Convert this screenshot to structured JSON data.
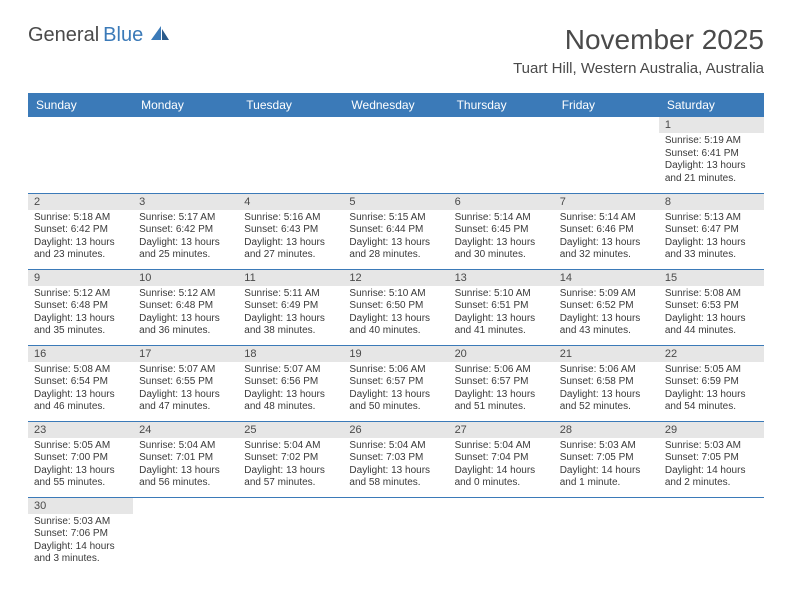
{
  "logo": {
    "part1": "General",
    "part2": "Blue"
  },
  "title": "November 2025",
  "location": "Tuart Hill, Western Australia, Australia",
  "colors": {
    "header_bg": "#3b7ab8",
    "header_text": "#ffffff",
    "daynum_bg": "#e6e6e6",
    "text": "#3a3a3a",
    "title_text": "#4a4a4a",
    "row_border": "#3b7ab8"
  },
  "day_headers": [
    "Sunday",
    "Monday",
    "Tuesday",
    "Wednesday",
    "Thursday",
    "Friday",
    "Saturday"
  ],
  "weeks": [
    [
      null,
      null,
      null,
      null,
      null,
      null,
      {
        "n": "1",
        "sr": "Sunrise: 5:19 AM",
        "ss": "Sunset: 6:41 PM",
        "dl": "Daylight: 13 hours and 21 minutes."
      }
    ],
    [
      {
        "n": "2",
        "sr": "Sunrise: 5:18 AM",
        "ss": "Sunset: 6:42 PM",
        "dl": "Daylight: 13 hours and 23 minutes."
      },
      {
        "n": "3",
        "sr": "Sunrise: 5:17 AM",
        "ss": "Sunset: 6:42 PM",
        "dl": "Daylight: 13 hours and 25 minutes."
      },
      {
        "n": "4",
        "sr": "Sunrise: 5:16 AM",
        "ss": "Sunset: 6:43 PM",
        "dl": "Daylight: 13 hours and 27 minutes."
      },
      {
        "n": "5",
        "sr": "Sunrise: 5:15 AM",
        "ss": "Sunset: 6:44 PM",
        "dl": "Daylight: 13 hours and 28 minutes."
      },
      {
        "n": "6",
        "sr": "Sunrise: 5:14 AM",
        "ss": "Sunset: 6:45 PM",
        "dl": "Daylight: 13 hours and 30 minutes."
      },
      {
        "n": "7",
        "sr": "Sunrise: 5:14 AM",
        "ss": "Sunset: 6:46 PM",
        "dl": "Daylight: 13 hours and 32 minutes."
      },
      {
        "n": "8",
        "sr": "Sunrise: 5:13 AM",
        "ss": "Sunset: 6:47 PM",
        "dl": "Daylight: 13 hours and 33 minutes."
      }
    ],
    [
      {
        "n": "9",
        "sr": "Sunrise: 5:12 AM",
        "ss": "Sunset: 6:48 PM",
        "dl": "Daylight: 13 hours and 35 minutes."
      },
      {
        "n": "10",
        "sr": "Sunrise: 5:12 AM",
        "ss": "Sunset: 6:48 PM",
        "dl": "Daylight: 13 hours and 36 minutes."
      },
      {
        "n": "11",
        "sr": "Sunrise: 5:11 AM",
        "ss": "Sunset: 6:49 PM",
        "dl": "Daylight: 13 hours and 38 minutes."
      },
      {
        "n": "12",
        "sr": "Sunrise: 5:10 AM",
        "ss": "Sunset: 6:50 PM",
        "dl": "Daylight: 13 hours and 40 minutes."
      },
      {
        "n": "13",
        "sr": "Sunrise: 5:10 AM",
        "ss": "Sunset: 6:51 PM",
        "dl": "Daylight: 13 hours and 41 minutes."
      },
      {
        "n": "14",
        "sr": "Sunrise: 5:09 AM",
        "ss": "Sunset: 6:52 PM",
        "dl": "Daylight: 13 hours and 43 minutes."
      },
      {
        "n": "15",
        "sr": "Sunrise: 5:08 AM",
        "ss": "Sunset: 6:53 PM",
        "dl": "Daylight: 13 hours and 44 minutes."
      }
    ],
    [
      {
        "n": "16",
        "sr": "Sunrise: 5:08 AM",
        "ss": "Sunset: 6:54 PM",
        "dl": "Daylight: 13 hours and 46 minutes."
      },
      {
        "n": "17",
        "sr": "Sunrise: 5:07 AM",
        "ss": "Sunset: 6:55 PM",
        "dl": "Daylight: 13 hours and 47 minutes."
      },
      {
        "n": "18",
        "sr": "Sunrise: 5:07 AM",
        "ss": "Sunset: 6:56 PM",
        "dl": "Daylight: 13 hours and 48 minutes."
      },
      {
        "n": "19",
        "sr": "Sunrise: 5:06 AM",
        "ss": "Sunset: 6:57 PM",
        "dl": "Daylight: 13 hours and 50 minutes."
      },
      {
        "n": "20",
        "sr": "Sunrise: 5:06 AM",
        "ss": "Sunset: 6:57 PM",
        "dl": "Daylight: 13 hours and 51 minutes."
      },
      {
        "n": "21",
        "sr": "Sunrise: 5:06 AM",
        "ss": "Sunset: 6:58 PM",
        "dl": "Daylight: 13 hours and 52 minutes."
      },
      {
        "n": "22",
        "sr": "Sunrise: 5:05 AM",
        "ss": "Sunset: 6:59 PM",
        "dl": "Daylight: 13 hours and 54 minutes."
      }
    ],
    [
      {
        "n": "23",
        "sr": "Sunrise: 5:05 AM",
        "ss": "Sunset: 7:00 PM",
        "dl": "Daylight: 13 hours and 55 minutes."
      },
      {
        "n": "24",
        "sr": "Sunrise: 5:04 AM",
        "ss": "Sunset: 7:01 PM",
        "dl": "Daylight: 13 hours and 56 minutes."
      },
      {
        "n": "25",
        "sr": "Sunrise: 5:04 AM",
        "ss": "Sunset: 7:02 PM",
        "dl": "Daylight: 13 hours and 57 minutes."
      },
      {
        "n": "26",
        "sr": "Sunrise: 5:04 AM",
        "ss": "Sunset: 7:03 PM",
        "dl": "Daylight: 13 hours and 58 minutes."
      },
      {
        "n": "27",
        "sr": "Sunrise: 5:04 AM",
        "ss": "Sunset: 7:04 PM",
        "dl": "Daylight: 14 hours and 0 minutes."
      },
      {
        "n": "28",
        "sr": "Sunrise: 5:03 AM",
        "ss": "Sunset: 7:05 PM",
        "dl": "Daylight: 14 hours and 1 minute."
      },
      {
        "n": "29",
        "sr": "Sunrise: 5:03 AM",
        "ss": "Sunset: 7:05 PM",
        "dl": "Daylight: 14 hours and 2 minutes."
      }
    ],
    [
      {
        "n": "30",
        "sr": "Sunrise: 5:03 AM",
        "ss": "Sunset: 7:06 PM",
        "dl": "Daylight: 14 hours and 3 minutes."
      },
      null,
      null,
      null,
      null,
      null,
      null
    ]
  ]
}
